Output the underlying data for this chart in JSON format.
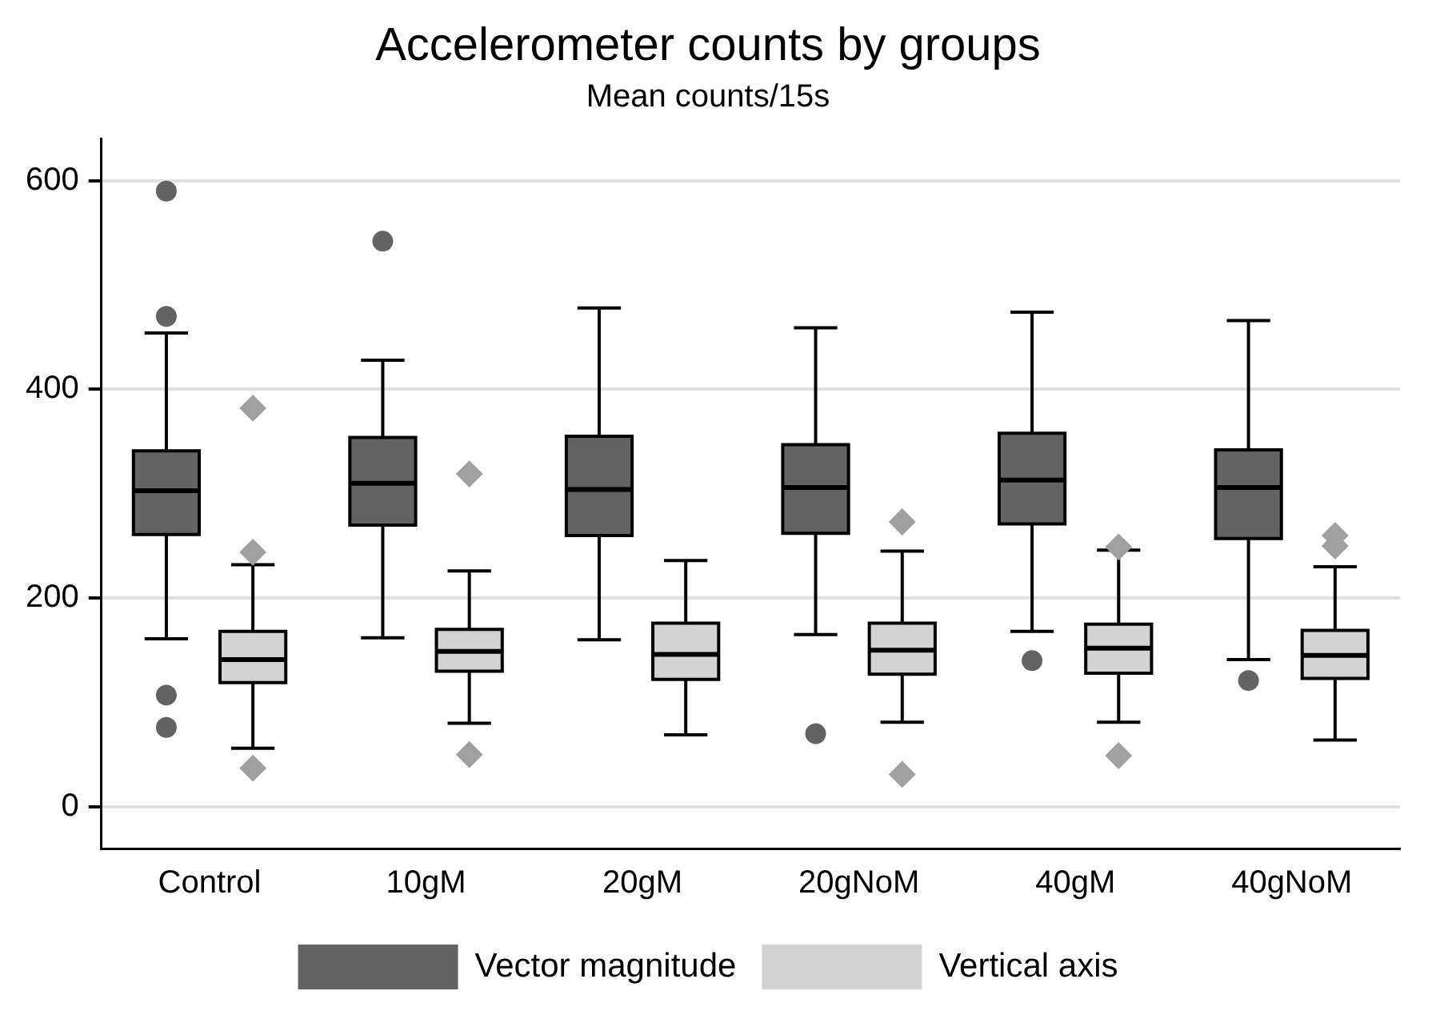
{
  "chart_data": {
    "type": "box",
    "title": "Accelerometer counts by groups",
    "subtitle": "Mean counts/15s",
    "categories": [
      "Control",
      "10gM",
      "20gM",
      "20gNoM",
      "40gM",
      "40gNoM"
    ],
    "ylim": [
      -40,
      640
    ],
    "yticks": [
      0,
      200,
      400,
      600
    ],
    "grid": "y",
    "legend": "bottom",
    "series": [
      {
        "name": "Vector magnitude",
        "color": "#636363",
        "marker": "circle",
        "boxes": [
          {
            "low": 161,
            "q1": 261,
            "median": 303,
            "q3": 341,
            "high": 454,
            "outliers": [
              590,
              470,
              107,
              76
            ]
          },
          {
            "low": 162,
            "q1": 270,
            "median": 310,
            "q3": 354,
            "high": 428,
            "outliers": [
              542
            ]
          },
          {
            "low": 160,
            "q1": 260,
            "median": 304,
            "q3": 355,
            "high": 478
          },
          {
            "low": 165,
            "q1": 262,
            "median": 306,
            "q3": 347,
            "high": 459,
            "outliers": [
              70
            ]
          },
          {
            "low": 168,
            "q1": 271,
            "median": 313,
            "q3": 358,
            "high": 474,
            "outliers": [
              140
            ]
          },
          {
            "low": 141,
            "q1": 257,
            "median": 306,
            "q3": 342,
            "high": 466,
            "outliers": [
              121
            ]
          }
        ]
      },
      {
        "name": "Vertical axis",
        "color": "#d3d3d3",
        "marker": "diamond",
        "boxes": [
          {
            "low": 56,
            "q1": 119,
            "median": 141,
            "q3": 168,
            "high": 232,
            "outliers": [
              382,
              244,
              37
            ]
          },
          {
            "low": 80,
            "q1": 130,
            "median": 149,
            "q3": 170,
            "high": 226,
            "outliers": [
              319,
              50
            ]
          },
          {
            "low": 69,
            "q1": 122,
            "median": 146,
            "q3": 176,
            "high": 236
          },
          {
            "low": 81,
            "q1": 127,
            "median": 150,
            "q3": 176,
            "high": 245,
            "outliers": [
              273,
              31
            ]
          },
          {
            "low": 81,
            "q1": 128,
            "median": 152,
            "q3": 175,
            "high": 246,
            "outliers": [
              249,
              49
            ]
          },
          {
            "low": 64,
            "q1": 123,
            "median": 145,
            "q3": 169,
            "high": 230,
            "outliers": [
              260,
              250
            ]
          }
        ]
      }
    ]
  }
}
